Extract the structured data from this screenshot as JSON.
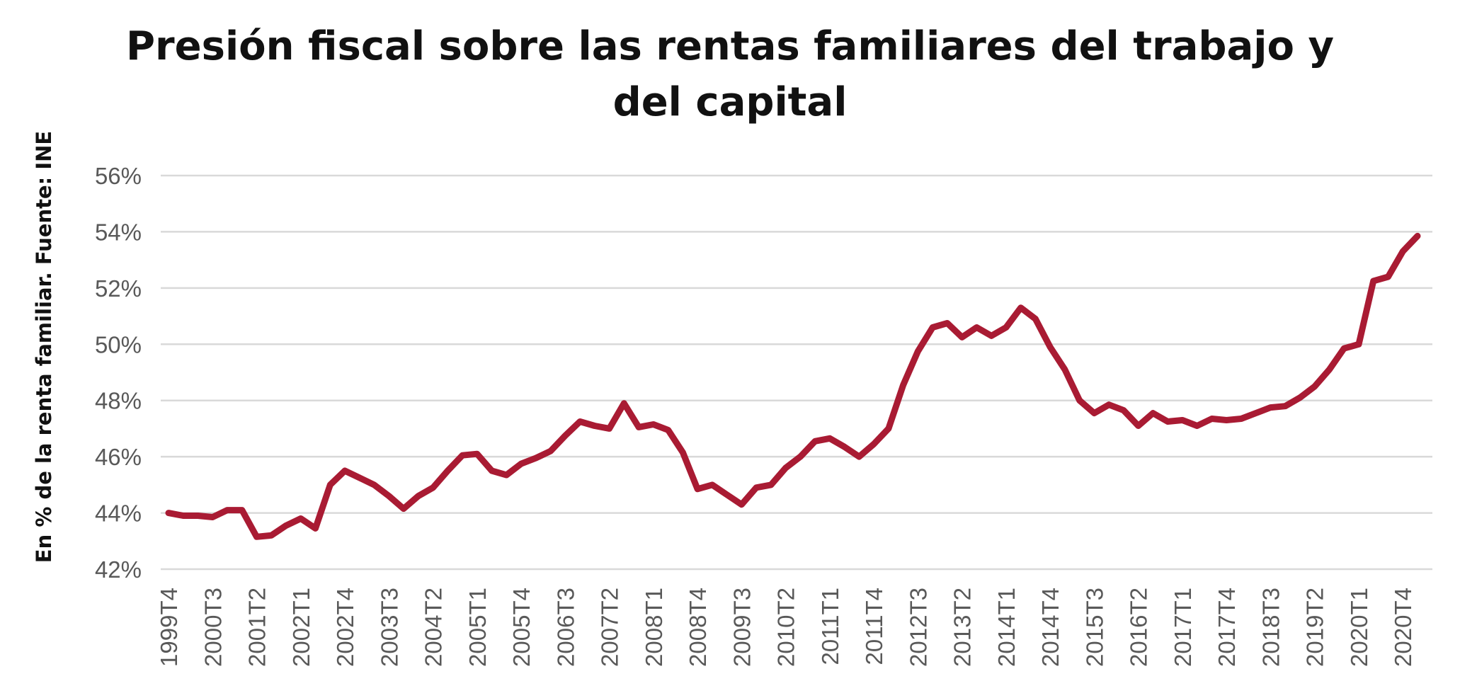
{
  "chart_data": {
    "type": "line",
    "title_lines": [
      "Presión fiscal sobre las rentas familiares del trabajo y",
      "del capital"
    ],
    "ylabel": "En % de la renta familiar. Fuente: INE",
    "xlabel": "",
    "ylim": [
      42,
      56
    ],
    "yticks": [
      "42%",
      "44%",
      "46%",
      "48%",
      "50%",
      "52%",
      "54%",
      "56%"
    ],
    "ytick_values": [
      42,
      44,
      46,
      48,
      50,
      52,
      54,
      56
    ],
    "grid": true,
    "legend": "none",
    "color": "#A91B33",
    "x_tick_labels": [
      "1999T4",
      "2000T3",
      "2001T2",
      "2002T1",
      "2002T4",
      "2003T3",
      "2004T2",
      "2005T1",
      "2005T4",
      "2006T3",
      "2007T2",
      "2008T1",
      "2008T4",
      "2009T3",
      "2010T2",
      "2011T1",
      "2011T4",
      "2012T3",
      "2013T2",
      "2014T1",
      "2014T4",
      "2015T3",
      "2016T2",
      "2017T1",
      "2017T4",
      "2018T3",
      "2019T2",
      "2020T1",
      "2020T4"
    ],
    "x": [
      "1999T4",
      "2000T1",
      "2000T2",
      "2000T3",
      "2000T4",
      "2001T1",
      "2001T2",
      "2001T3",
      "2001T4",
      "2002T1",
      "2002T2",
      "2002T3",
      "2002T4",
      "2003T1",
      "2003T2",
      "2003T3",
      "2003T4",
      "2004T1",
      "2004T2",
      "2004T3",
      "2004T4",
      "2005T1",
      "2005T2",
      "2005T3",
      "2005T4",
      "2006T1",
      "2006T2",
      "2006T3",
      "2006T4",
      "2007T1",
      "2007T2",
      "2007T3",
      "2007T4",
      "2008T1",
      "2008T2",
      "2008T3",
      "2008T4",
      "2009T1",
      "2009T2",
      "2009T3",
      "2009T4",
      "2010T1",
      "2010T2",
      "2010T3",
      "2010T4",
      "2011T1",
      "2011T2",
      "2011T3",
      "2011T4",
      "2012T1",
      "2012T2",
      "2012T3",
      "2012T4",
      "2013T1",
      "2013T2",
      "2013T3",
      "2013T4",
      "2014T1",
      "2014T2",
      "2014T3",
      "2014T4",
      "2015T1",
      "2015T2",
      "2015T3",
      "2015T4",
      "2016T1",
      "2016T2",
      "2016T3",
      "2016T4",
      "2017T1",
      "2017T2",
      "2017T3",
      "2017T4",
      "2018T1",
      "2018T2",
      "2018T3",
      "2018T4",
      "2019T1",
      "2019T2",
      "2019T3",
      "2019T4",
      "2020T1",
      "2020T2",
      "2020T3",
      "2020T4",
      "2021T1"
    ],
    "values": [
      44.0,
      43.9,
      43.9,
      43.85,
      44.1,
      44.1,
      43.15,
      43.2,
      43.55,
      43.8,
      43.45,
      45.0,
      45.5,
      45.25,
      45.0,
      44.6,
      44.15,
      44.6,
      44.9,
      45.5,
      46.05,
      46.1,
      45.5,
      45.35,
      45.75,
      45.95,
      46.2,
      46.75,
      47.25,
      47.1,
      47.0,
      47.9,
      47.05,
      47.15,
      46.95,
      46.15,
      44.85,
      45.0,
      44.65,
      44.3,
      44.9,
      45.0,
      45.6,
      46.0,
      46.55,
      46.65,
      46.35,
      46.0,
      46.45,
      47.0,
      48.55,
      49.75,
      50.6,
      50.75,
      50.25,
      50.6,
      50.3,
      50.6,
      51.3,
      50.9,
      49.9,
      49.1,
      48.0,
      47.55,
      47.85,
      47.65,
      47.1,
      47.55,
      47.25,
      47.3,
      47.1,
      47.35,
      47.3,
      47.35,
      47.55,
      47.75,
      47.8,
      48.1,
      48.5,
      49.1,
      49.85,
      50.0,
      52.25,
      52.4,
      53.3,
      53.85
    ]
  }
}
